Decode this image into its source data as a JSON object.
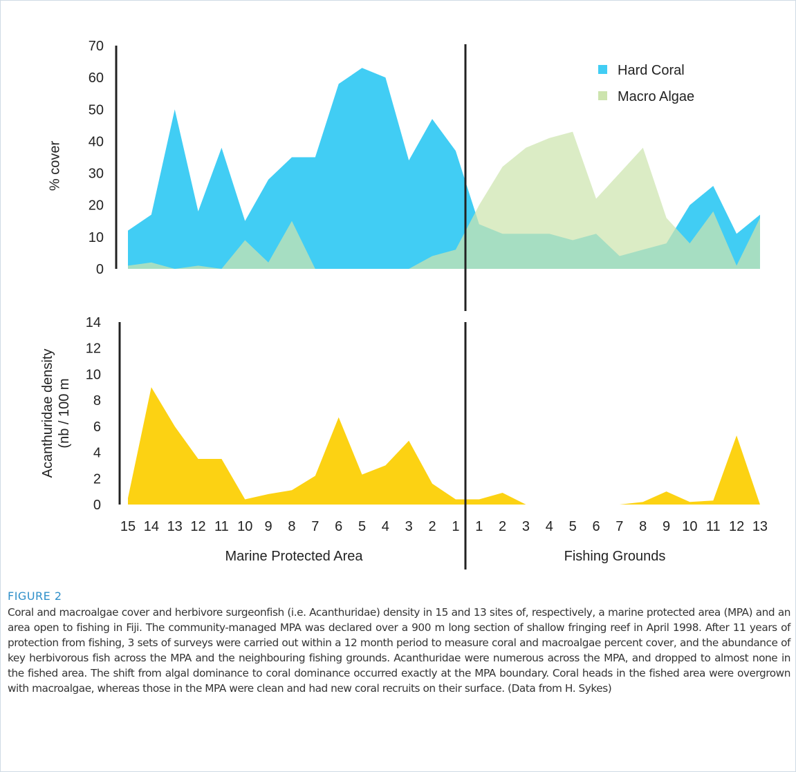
{
  "figure": {
    "label": "FIGURE 2",
    "caption": "Coral and macroalgae cover and herbivore surgeonfish (i.e. Acanthuridae) density in 15 and 13 sites of, respectively, a marine protected area (MPA) and an area open to fishing in Fiji. The community-managed MPA was declared over a 900 m long section of shallow fringing reef in April 1998. After 11 years of protection from fishing, 3 sets of surveys were carried out within a 12 month period to measure coral and macroalgae percent cover, and the abundance of key herbivorous fish across the MPA and the neighbouring fishing grounds. Acanthuridae were numerous across the MPA, and dropped to almost none in the fished area. The shift from algal dominance to coral dominance occurred exactly at the MPA boundary. Coral heads in the fished area were overgrown with macroalgae, whereas those in the MPA were clean and had new coral recruits on their surface. (Data from H. Sykes)"
  },
  "chart_data": [
    {
      "type": "area",
      "ylabel": "% cover",
      "ylim": [
        0,
        70
      ],
      "yticks": [
        "0",
        "10",
        "20",
        "30",
        "40",
        "50",
        "60",
        "70"
      ],
      "legend_position": "top-right",
      "x": [
        "15",
        "14",
        "13",
        "12",
        "11",
        "10",
        "9",
        "8",
        "7",
        "6",
        "5",
        "4",
        "3",
        "2",
        "1",
        "1",
        "2",
        "3",
        "4",
        "5",
        "6",
        "7",
        "8",
        "9",
        "10",
        "11",
        "12",
        "13"
      ],
      "series": [
        {
          "name": "Hard Coral",
          "color": "#41cdf4",
          "values": [
            12,
            17,
            50,
            18,
            38,
            15,
            28,
            35,
            35,
            58,
            63,
            60,
            34,
            47,
            37,
            14,
            11,
            11,
            11,
            9,
            11,
            4,
            6,
            8,
            20,
            26,
            11,
            17
          ]
        },
        {
          "name": "Macro Algae",
          "color": "#cde4ae",
          "values": [
            1,
            2,
            0,
            1,
            0,
            9,
            2,
            15,
            0,
            0,
            0,
            0,
            0,
            4,
            6,
            20,
            32,
            38,
            41,
            43,
            22,
            30,
            38,
            16,
            8,
            18,
            1,
            16
          ]
        }
      ]
    },
    {
      "type": "area",
      "ylabel": "Acanthuridae density\n(nb / 100 m",
      "ylim": [
        0,
        14
      ],
      "yticks": [
        "0",
        "2",
        "4",
        "6",
        "8",
        "10",
        "12",
        "14"
      ],
      "x": [
        "15",
        "14",
        "13",
        "12",
        "11",
        "10",
        "9",
        "8",
        "7",
        "6",
        "5",
        "4",
        "3",
        "2",
        "1",
        "1",
        "2",
        "3",
        "4",
        "5",
        "6",
        "7",
        "8",
        "9",
        "10",
        "11",
        "12",
        "13"
      ],
      "groups": [
        "Marine Protected Area",
        "Fishing Grounds"
      ],
      "series": [
        {
          "name": "",
          "color": "#fcd213",
          "values": [
            0.5,
            9,
            6,
            3.5,
            3.5,
            0.4,
            0.8,
            1.1,
            2.2,
            6.7,
            2.3,
            3,
            4.9,
            1.6,
            0.4,
            0.4,
            0.9,
            0,
            0,
            0,
            0,
            0,
            0.2,
            1,
            0.2,
            0.3,
            5.3,
            0
          ]
        }
      ]
    }
  ]
}
